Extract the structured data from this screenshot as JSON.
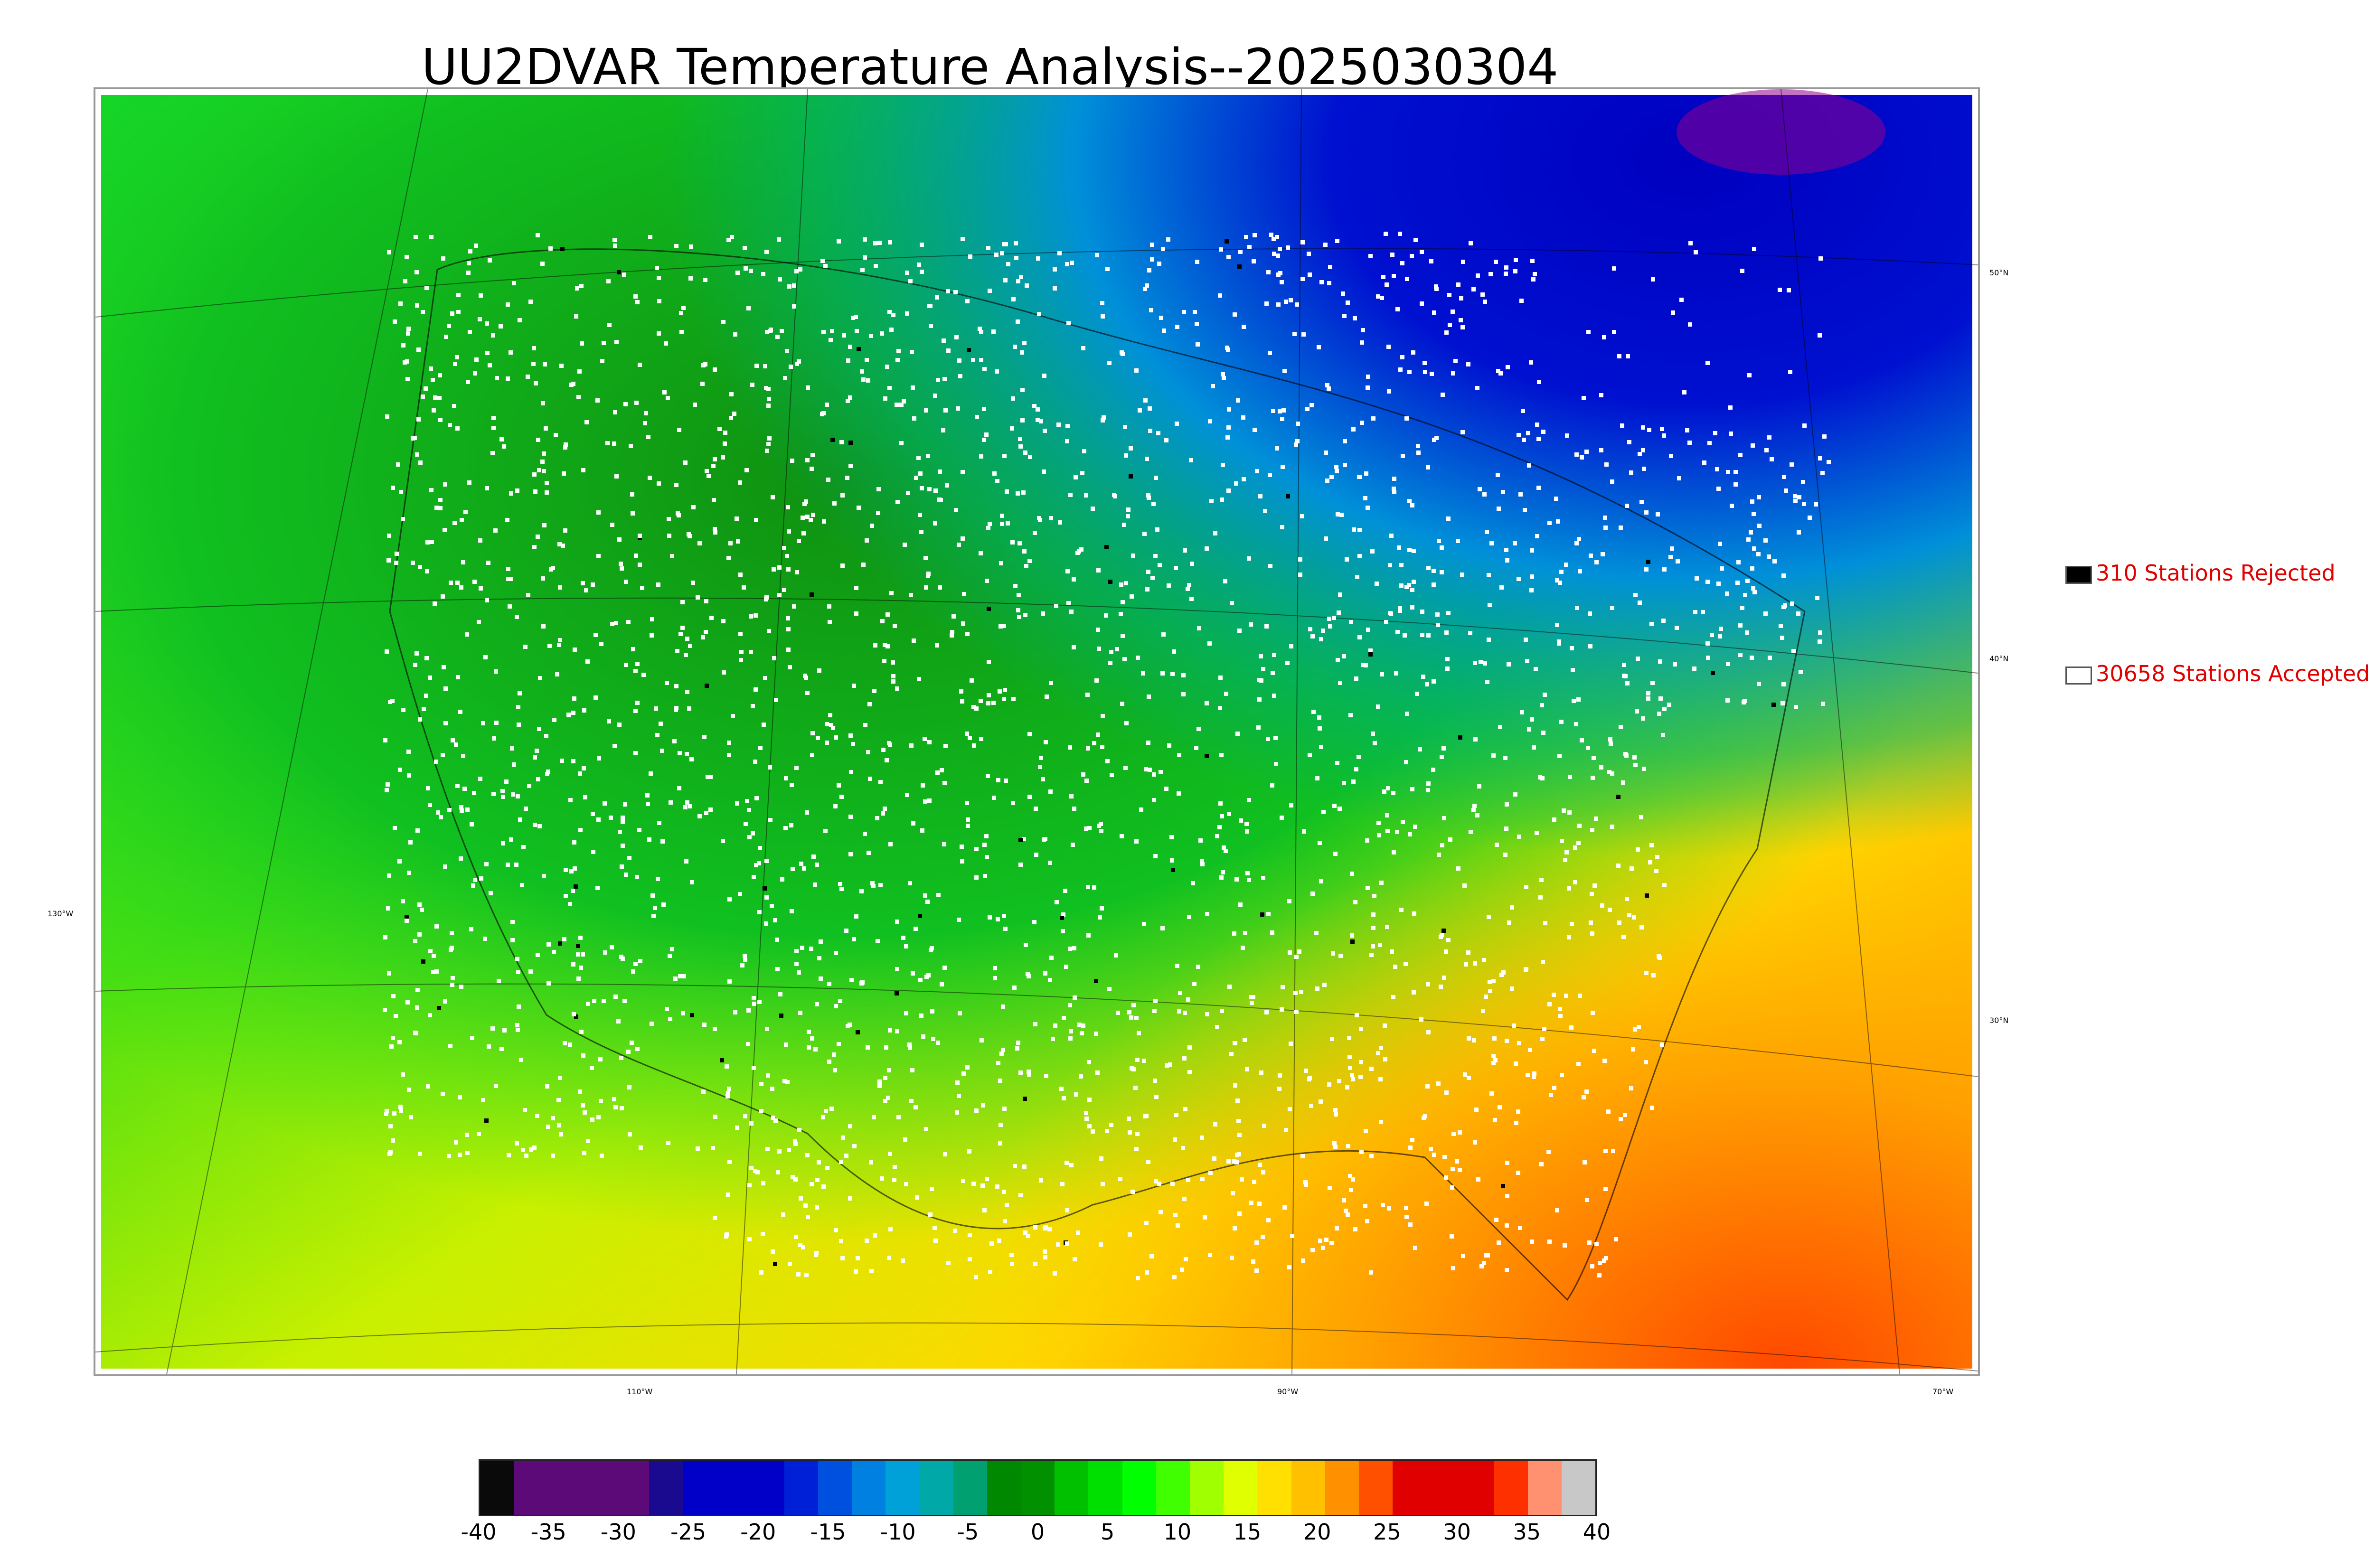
{
  "title": "UU2DVAR Temperature Analysis--2025030304",
  "map": {
    "lat_labels": [
      "50°N",
      "40°N",
      "30°N"
    ],
    "lon_labels": [
      "130°W",
      "110°W",
      "90°W",
      "70°W"
    ]
  },
  "legend": {
    "rejected": {
      "label": "310 Stations Rejected",
      "color": "#000000"
    },
    "accepted": {
      "label": "30658 Stations Accepted",
      "color": "#ffffff"
    }
  },
  "colorbar": {
    "tick_labels": [
      "-40",
      "-35",
      "-30",
      "-25",
      "-20",
      "-15",
      "-10",
      "-5",
      "0",
      "5",
      "10",
      "15",
      "20",
      "25",
      "30",
      "35",
      "40"
    ],
    "colors": [
      "#0a0a0a",
      "#5c0a78",
      "#5c0a78",
      "#5c0a78",
      "#5c0a78",
      "#1a0a90",
      "#0000c8",
      "#0000c8",
      "#0000c8",
      "#0020d8",
      "#0050e0",
      "#0080e0",
      "#00a0d8",
      "#00a8a8",
      "#00a070",
      "#008800",
      "#009000",
      "#00c000",
      "#00e000",
      "#00ff00",
      "#40ff00",
      "#a0ff00",
      "#e0ff00",
      "#ffe000",
      "#ffc000",
      "#ff9000",
      "#ff5000",
      "#e00000",
      "#e00000",
      "#e00000",
      "#ff3000",
      "#ff9070",
      "#c8c8c8"
    ],
    "units_range": [
      -40,
      40
    ]
  }
}
